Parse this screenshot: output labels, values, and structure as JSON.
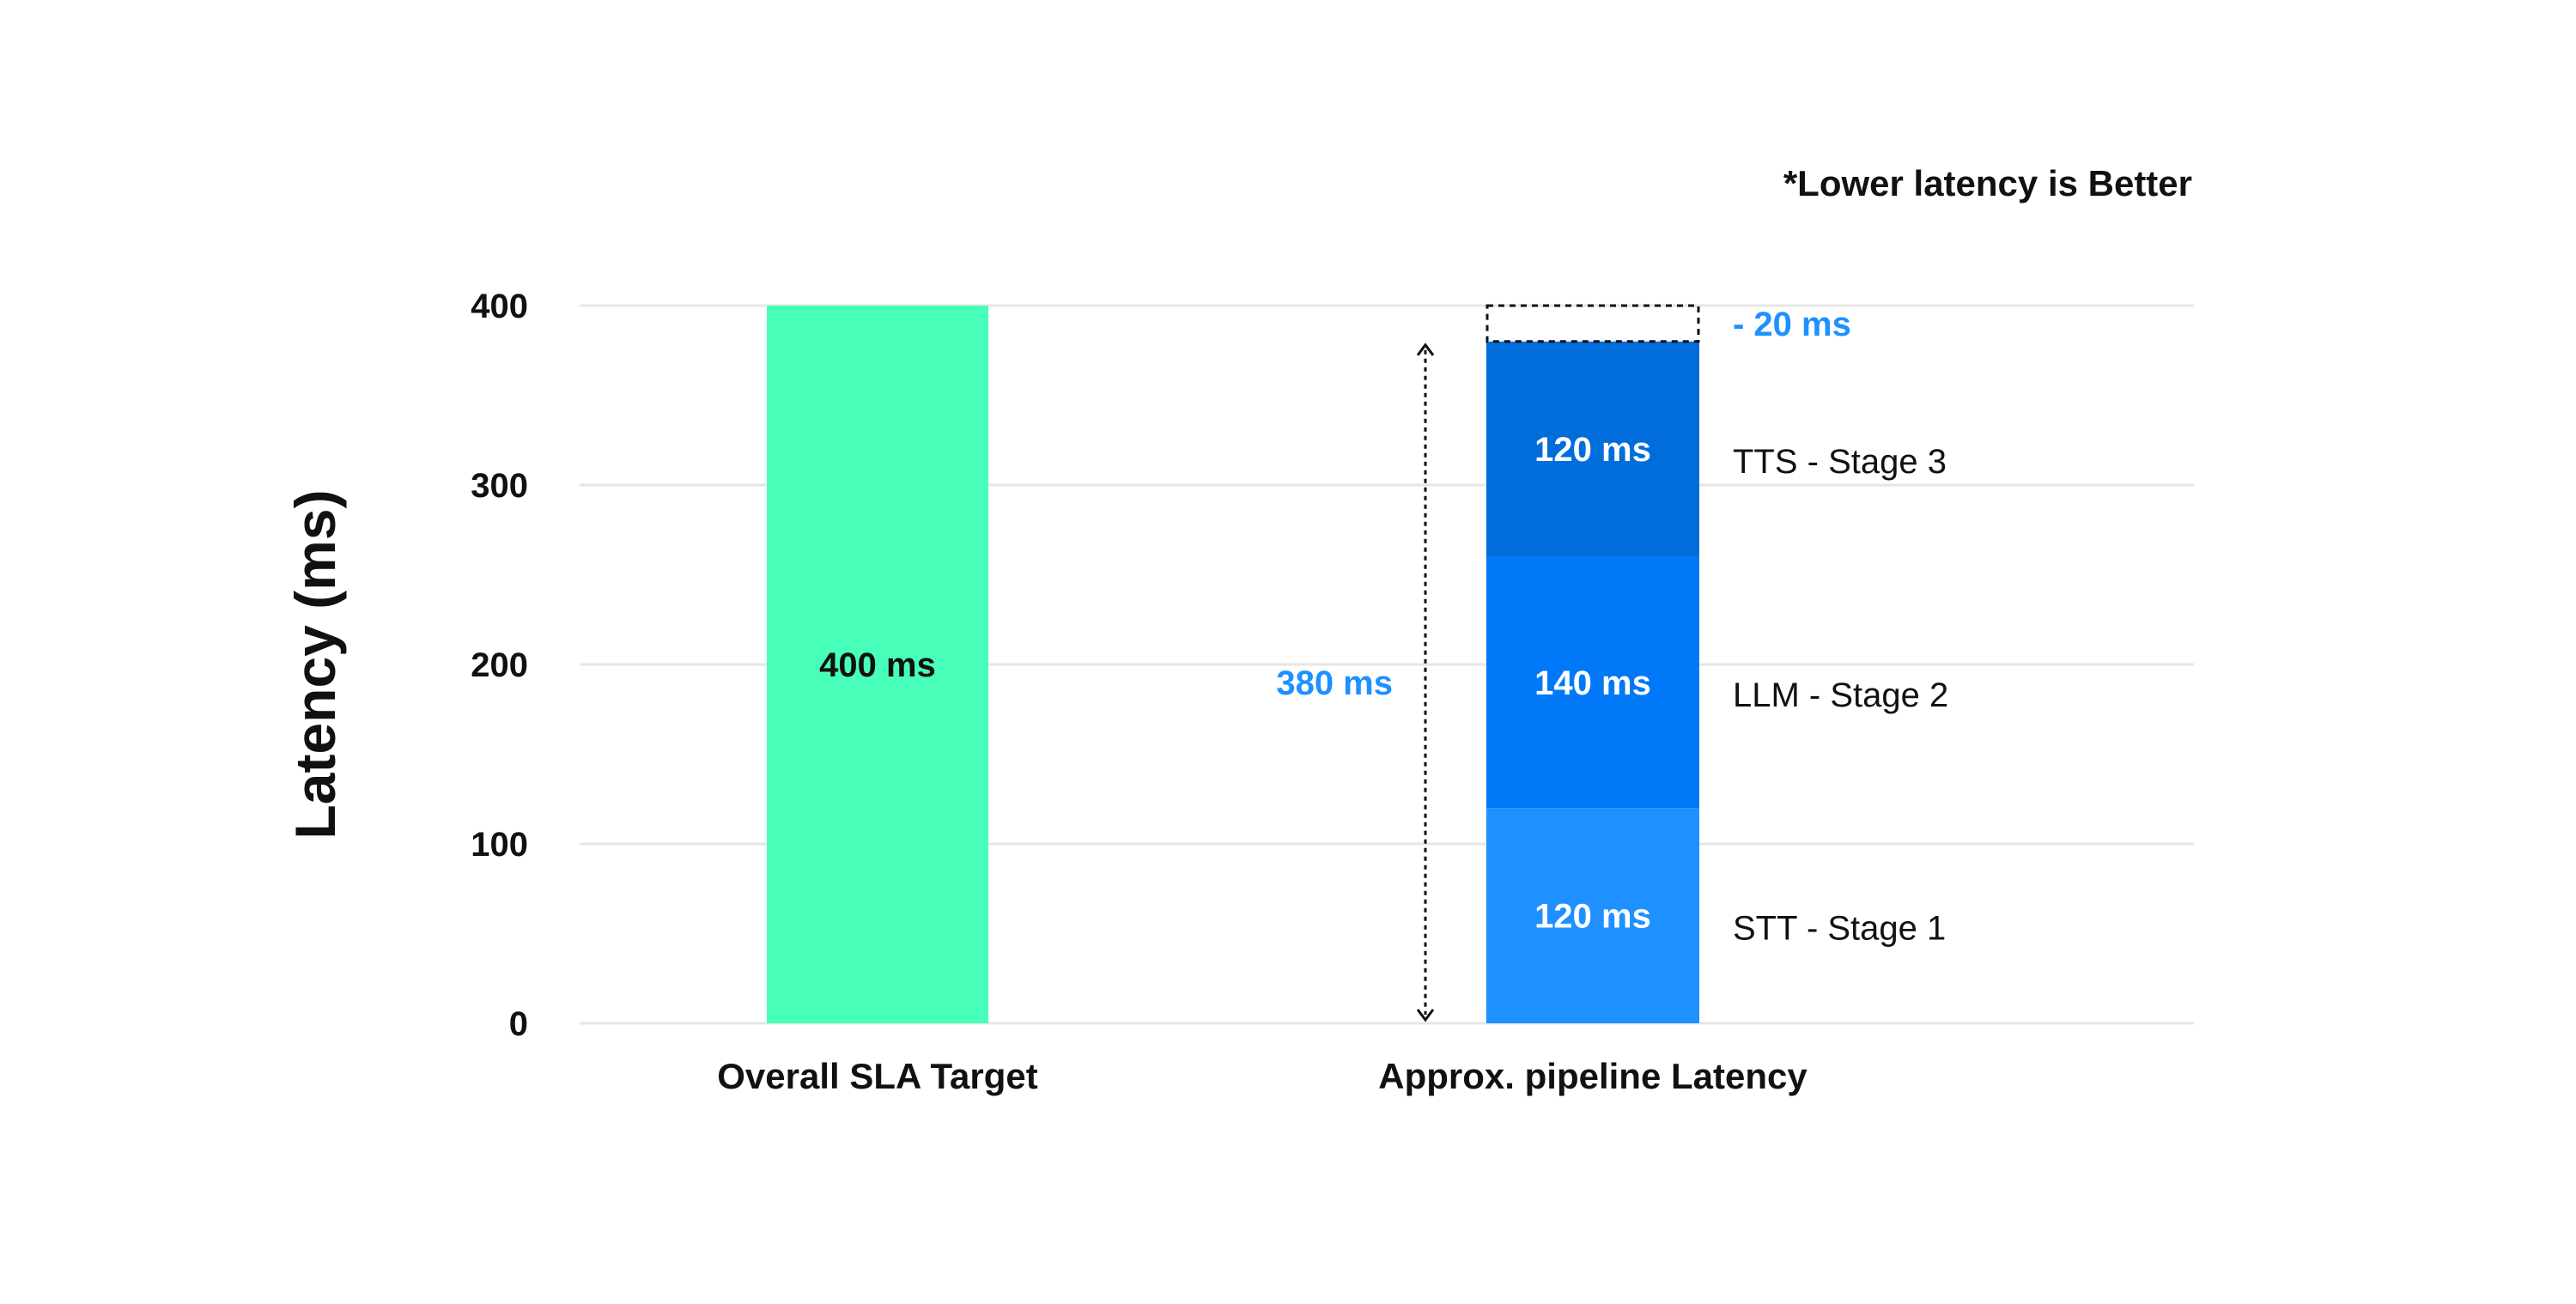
{
  "chart_data": {
    "type": "bar",
    "stacked": true,
    "note": "*Lower latency is Better",
    "ylabel": "Latency (ms)",
    "xlabel": "",
    "ylim": [
      0,
      400
    ],
    "yticks": [
      0,
      100,
      200,
      300,
      400
    ],
    "grid": true,
    "categories": [
      "Overall SLA Target",
      "Approx. pipeline Latency"
    ],
    "target": {
      "category": "Overall SLA Target",
      "value": 400,
      "value_label": "400 ms",
      "color": "#47FFB8"
    },
    "stages": [
      {
        "name": "STT - Stage 1",
        "value": 120,
        "value_label": "120 ms",
        "color": "#1E90FF"
      },
      {
        "name": "LLM - Stage 2",
        "value": 140,
        "value_label": "140 ms",
        "color": "#0078F7"
      },
      {
        "name": "TTS - Stage 3",
        "value": 120,
        "value_label": "120 ms",
        "color": "#006DDB"
      }
    ],
    "total": {
      "value": 380,
      "label": "380 ms",
      "color": "#1E90FF"
    },
    "savings": {
      "value": 20,
      "label": "- 20 ms",
      "color": "#1E90FF"
    }
  }
}
